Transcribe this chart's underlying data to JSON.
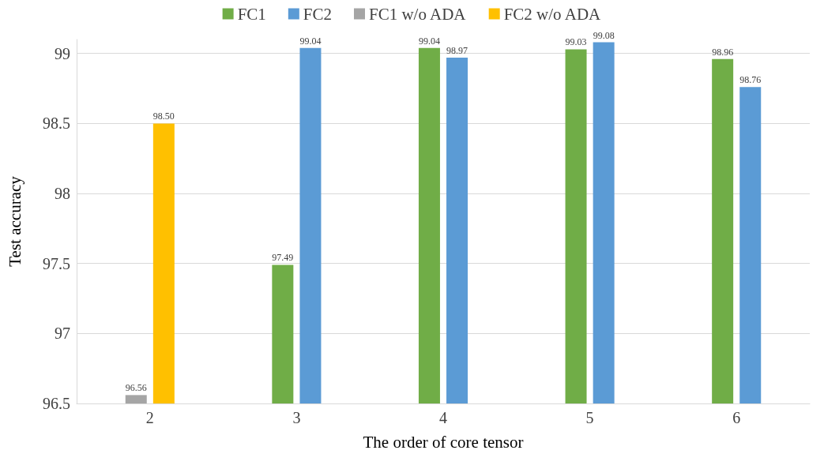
{
  "chart_data": {
    "type": "bar",
    "xlabel": "The order of core tensor",
    "ylabel": "Test accuracy",
    "categories": [
      "2",
      "3",
      "4",
      "5",
      "6"
    ],
    "series": [
      {
        "name": "FC1",
        "color": "#70ad47",
        "values": [
          null,
          97.49,
          99.04,
          99.03,
          98.96
        ],
        "value_labels": [
          null,
          "97.49",
          "99.04",
          "99.03",
          "98.96"
        ]
      },
      {
        "name": "FC2",
        "color": "#5b9bd5",
        "values": [
          null,
          99.04,
          98.97,
          99.08,
          98.76
        ],
        "value_labels": [
          null,
          "99.04",
          "98.97",
          "99.08",
          "98.76"
        ]
      },
      {
        "name": "FC1 w/o ADA",
        "color": "#a5a5a5",
        "values": [
          96.56,
          null,
          null,
          null,
          null
        ],
        "value_labels": [
          "96.56",
          null,
          null,
          null,
          null
        ]
      },
      {
        "name": "FC2 w/o ADA",
        "color": "#ffc000",
        "values": [
          98.5,
          null,
          null,
          null,
          null
        ],
        "value_labels": [
          "98.50",
          null,
          null,
          null,
          null
        ]
      }
    ],
    "ylim": [
      96.5,
      99.1
    ],
    "yticks": [
      96.5,
      97,
      97.5,
      98,
      98.5,
      99
    ],
    "grid": "y",
    "legend": "top"
  }
}
